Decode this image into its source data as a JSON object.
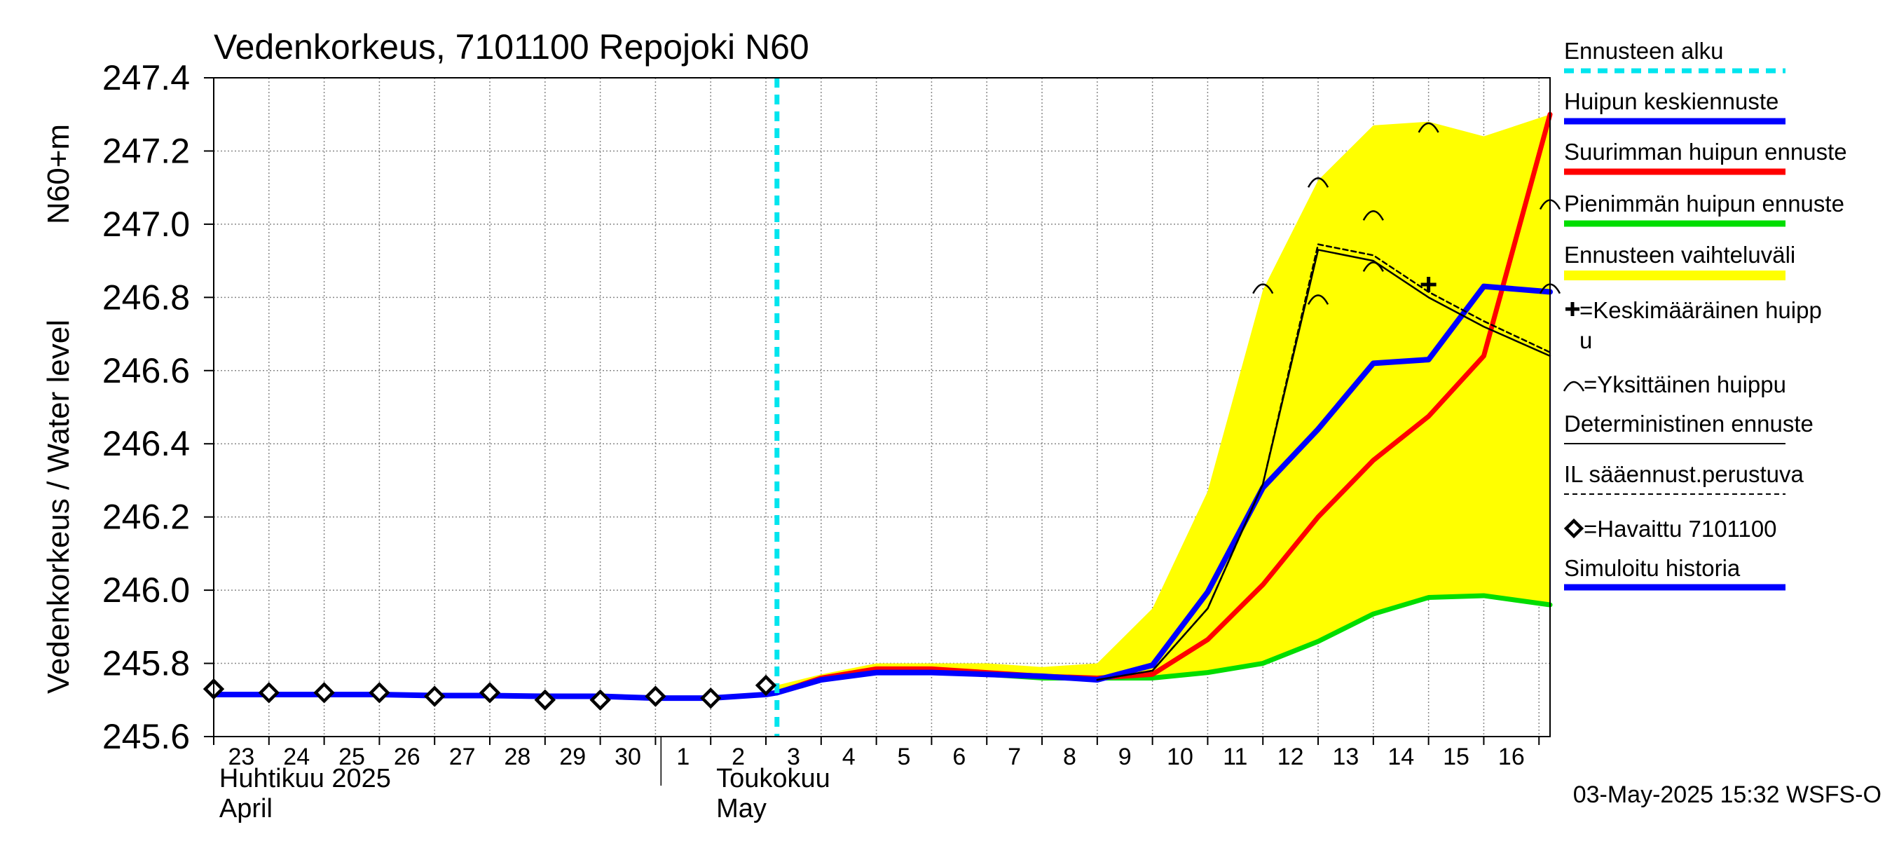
{
  "chart_data": {
    "type": "line",
    "title": "Vedenkorkeus, 7101100 Repojoki N60",
    "ylabel_fi": "Vedenkorkeus / Water level",
    "ylabel_unit": "N60+m",
    "ylim": [
      245.6,
      247.4
    ],
    "yticks": [
      245.6,
      245.8,
      246.0,
      246.2,
      246.4,
      246.6,
      246.8,
      247.0,
      247.2,
      247.4
    ],
    "ytick_labels": [
      "245.6",
      "245.8",
      "246.0",
      "246.2",
      "246.4",
      "246.6",
      "246.8",
      "247.0",
      "247.2",
      "247.4"
    ],
    "xlim": [
      0,
      24.2
    ],
    "day_labels": [
      "23",
      "24",
      "25",
      "26",
      "27",
      "28",
      "29",
      "30",
      "1",
      "2",
      "3",
      "4",
      "5",
      "6",
      "7",
      "8",
      "9",
      "10",
      "11",
      "12",
      "13",
      "14",
      "15",
      "16"
    ],
    "month_labels": [
      {
        "x": 0.1,
        "fi": "Huhtikuu  2025",
        "en": "April"
      },
      {
        "x": 9.1,
        "fi": "Toukokuu",
        "en": "May"
      }
    ],
    "month_divider_x": 8.1,
    "forecast_start_x": 10.2,
    "timestamp": "03-May-2025 15:32 WSFS-O",
    "legend": [
      {
        "label": "Ennusteen alku",
        "kind": "dashed",
        "color": "#00e5ee"
      },
      {
        "label": "Huipun keskiennuste",
        "kind": "line",
        "color": "#0000ff"
      },
      {
        "label": "Suurimman huipun ennuste",
        "kind": "line",
        "color": "#ff0000"
      },
      {
        "label": "Pienimmän huipun ennuste",
        "kind": "line",
        "color": "#00dd00"
      },
      {
        "label": "Ennusteen vaihteluväli",
        "kind": "band",
        "color": "#ffff00"
      },
      {
        "label": "=Keskimääräinen huipp",
        "label2": "u",
        "kind": "plus",
        "color": "#000000"
      },
      {
        "label": "=Yksittäinen huippu",
        "kind": "arc",
        "color": "#000000"
      },
      {
        "label": "Deterministinen ennuste",
        "kind": "thin",
        "color": "#000000"
      },
      {
        "label": "IL sääennust.perustuva",
        "kind": "thindash",
        "color": "#000000"
      },
      {
        "label": "=Havaittu 7101100",
        "kind": "diamond",
        "color": "#000000"
      },
      {
        "label": "Simuloitu historia",
        "kind": "line",
        "color": "#0000ff"
      }
    ],
    "band_upper": [
      [
        10.2,
        245.74
      ],
      [
        11,
        245.77
      ],
      [
        12,
        245.8
      ],
      [
        13,
        245.8
      ],
      [
        14,
        245.8
      ],
      [
        15,
        245.79
      ],
      [
        16,
        245.8
      ],
      [
        17,
        245.95
      ],
      [
        18,
        246.27
      ],
      [
        19,
        246.82
      ],
      [
        20,
        247.12
      ],
      [
        21,
        247.27
      ],
      [
        22,
        247.28
      ],
      [
        23,
        247.24
      ],
      [
        24.2,
        247.3
      ]
    ],
    "band_lower": [
      [
        24.2,
        245.96
      ],
      [
        23,
        245.98
      ],
      [
        22,
        245.98
      ],
      [
        21,
        245.94
      ],
      [
        20,
        245.86
      ],
      [
        19,
        245.8
      ],
      [
        18,
        245.78
      ],
      [
        17,
        245.76
      ],
      [
        16,
        245.76
      ],
      [
        15,
        245.77
      ],
      [
        14,
        245.77
      ],
      [
        13,
        245.78
      ],
      [
        12,
        245.78
      ],
      [
        11,
        245.76
      ],
      [
        10.2,
        245.72
      ]
    ],
    "series": [
      {
        "name": "Simuloitu historia",
        "color": "#0000ff",
        "width": 8,
        "points": [
          [
            0,
            245.715
          ],
          [
            1,
            245.715
          ],
          [
            2,
            245.715
          ],
          [
            3,
            245.715
          ],
          [
            4,
            245.712
          ],
          [
            5,
            245.712
          ],
          [
            6,
            245.71
          ],
          [
            7,
            245.71
          ],
          [
            8,
            245.705
          ],
          [
            9,
            245.705
          ],
          [
            10,
            245.715
          ],
          [
            10.2,
            245.72
          ]
        ]
      },
      {
        "name": "Pienimmän huipun ennuste",
        "color": "#00dd00",
        "width": 7,
        "points": [
          [
            10.2,
            245.72
          ],
          [
            11,
            245.755
          ],
          [
            12,
            245.775
          ],
          [
            13,
            245.775
          ],
          [
            14,
            245.77
          ],
          [
            15,
            245.76
          ],
          [
            16,
            245.76
          ],
          [
            17,
            245.76
          ],
          [
            18,
            245.775
          ],
          [
            19,
            245.8
          ],
          [
            20,
            245.86
          ],
          [
            21,
            245.935
          ],
          [
            22,
            245.98
          ],
          [
            23,
            245.985
          ],
          [
            24.2,
            245.96
          ]
        ]
      },
      {
        "name": "Suurimman huipun ennuste",
        "color": "#ff0000",
        "width": 7,
        "points": [
          [
            10.2,
            245.72
          ],
          [
            11,
            245.76
          ],
          [
            12,
            245.785
          ],
          [
            13,
            245.785
          ],
          [
            14,
            245.775
          ],
          [
            15,
            245.765
          ],
          [
            16,
            245.76
          ],
          [
            17,
            245.77
          ],
          [
            18,
            245.865
          ],
          [
            19,
            246.015
          ],
          [
            20,
            246.2
          ],
          [
            21,
            246.355
          ],
          [
            22,
            246.475
          ],
          [
            23,
            246.64
          ],
          [
            24.2,
            247.3
          ]
        ]
      },
      {
        "name": "Huipun keskiennuste",
        "color": "#0000ff",
        "width": 8,
        "points": [
          [
            10.2,
            245.72
          ],
          [
            11,
            245.755
          ],
          [
            12,
            245.775
          ],
          [
            13,
            245.775
          ],
          [
            14,
            245.77
          ],
          [
            15,
            245.765
          ],
          [
            16,
            245.755
          ],
          [
            17,
            245.795
          ],
          [
            18,
            245.995
          ],
          [
            19,
            246.28
          ],
          [
            20,
            246.44
          ],
          [
            21,
            246.62
          ],
          [
            22,
            246.63
          ],
          [
            23,
            246.83
          ],
          [
            24.2,
            246.815
          ]
        ]
      },
      {
        "name": "Deterministinen ennuste",
        "color": "#000000",
        "width": 2.5,
        "points": [
          [
            16,
            245.755
          ],
          [
            17,
            245.78
          ],
          [
            18,
            245.95
          ],
          [
            19,
            246.29
          ],
          [
            20,
            246.93
          ],
          [
            21,
            246.9
          ],
          [
            22,
            246.8
          ],
          [
            23,
            246.72
          ],
          [
            24.2,
            246.64
          ]
        ]
      },
      {
        "name": "IL sääennust.perustuva",
        "color": "#000000",
        "width": 2.5,
        "dash": "7,5",
        "points": [
          [
            16,
            245.755
          ],
          [
            17,
            245.78
          ],
          [
            18,
            245.95
          ],
          [
            19,
            246.29
          ],
          [
            20,
            246.945
          ],
          [
            21,
            246.915
          ],
          [
            22,
            246.815
          ],
          [
            23,
            246.735
          ],
          [
            24.2,
            246.65
          ]
        ]
      }
    ],
    "observed": [
      [
        0,
        245.73
      ],
      [
        1,
        245.72
      ],
      [
        2,
        245.72
      ],
      [
        3,
        245.72
      ],
      [
        4,
        245.71
      ],
      [
        5,
        245.72
      ],
      [
        6,
        245.7
      ],
      [
        7,
        245.7
      ],
      [
        8,
        245.71
      ],
      [
        9,
        245.705
      ],
      [
        10,
        245.74
      ]
    ],
    "individual_peaks": [
      [
        19,
        246.83
      ],
      [
        20,
        247.12
      ],
      [
        20,
        246.8
      ],
      [
        21,
        247.03
      ],
      [
        21,
        246.89
      ],
      [
        22,
        247.27
      ],
      [
        24.2,
        247.06
      ],
      [
        24.2,
        246.83
      ]
    ],
    "mean_peak": [
      22,
      246.835
    ]
  }
}
